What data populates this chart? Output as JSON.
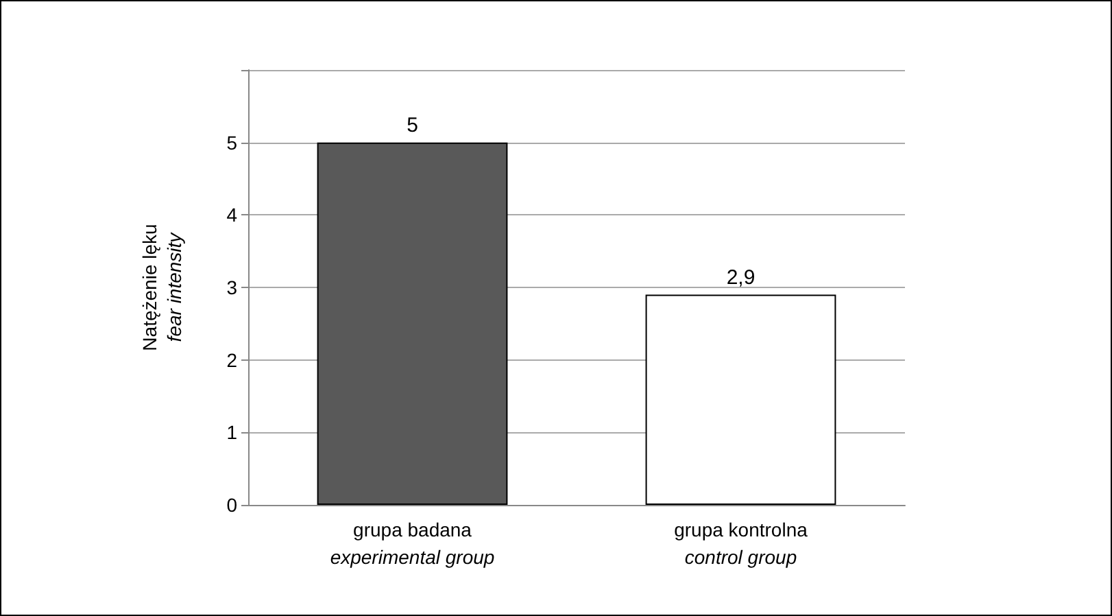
{
  "chart_data": {
    "type": "bar",
    "ylabel": "Natężenie lęku\nfear intensity",
    "categories": [
      "grupa badana\nexperimental group",
      "grupa kontrolna\ncontrol group"
    ],
    "values": [
      5,
      2.9
    ],
    "colors": [
      "#595959",
      "#ffffff"
    ],
    "value_labels": [
      "5",
      "2,9"
    ],
    "ylim": [
      0,
      6
    ],
    "yticks": [
      0,
      1,
      2,
      3,
      4,
      5,
      {
        "value": 6,
        "label": null
      }
    ],
    "grid": "y"
  }
}
